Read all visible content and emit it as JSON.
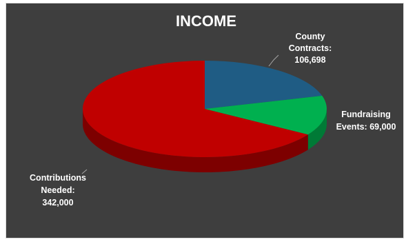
{
  "chart_data": {
    "type": "pie",
    "title": "INCOME",
    "slices": [
      {
        "name": "County Contracts",
        "value": 106698,
        "label_lines": [
          "County",
          "Contracts:",
          "106,698"
        ],
        "color": "#1f5c84",
        "side": "#163f5c"
      },
      {
        "name": "Fundraising Events",
        "value": 69000,
        "label_lines": [
          "Fundraising",
          "Events: 69,000"
        ],
        "color": "#00b04f",
        "side": "#007a36"
      },
      {
        "name": "Contributions Needed",
        "value": 342000,
        "label_lines": [
          "Contributions",
          "Needed:",
          "342,000"
        ],
        "color": "#c00000",
        "side": "#7d0000"
      }
    ],
    "style": "3d",
    "legend": "none"
  },
  "colors": {
    "background": "#3e3e3e",
    "text": "#ffffff",
    "leader": "#a6a6a6"
  }
}
